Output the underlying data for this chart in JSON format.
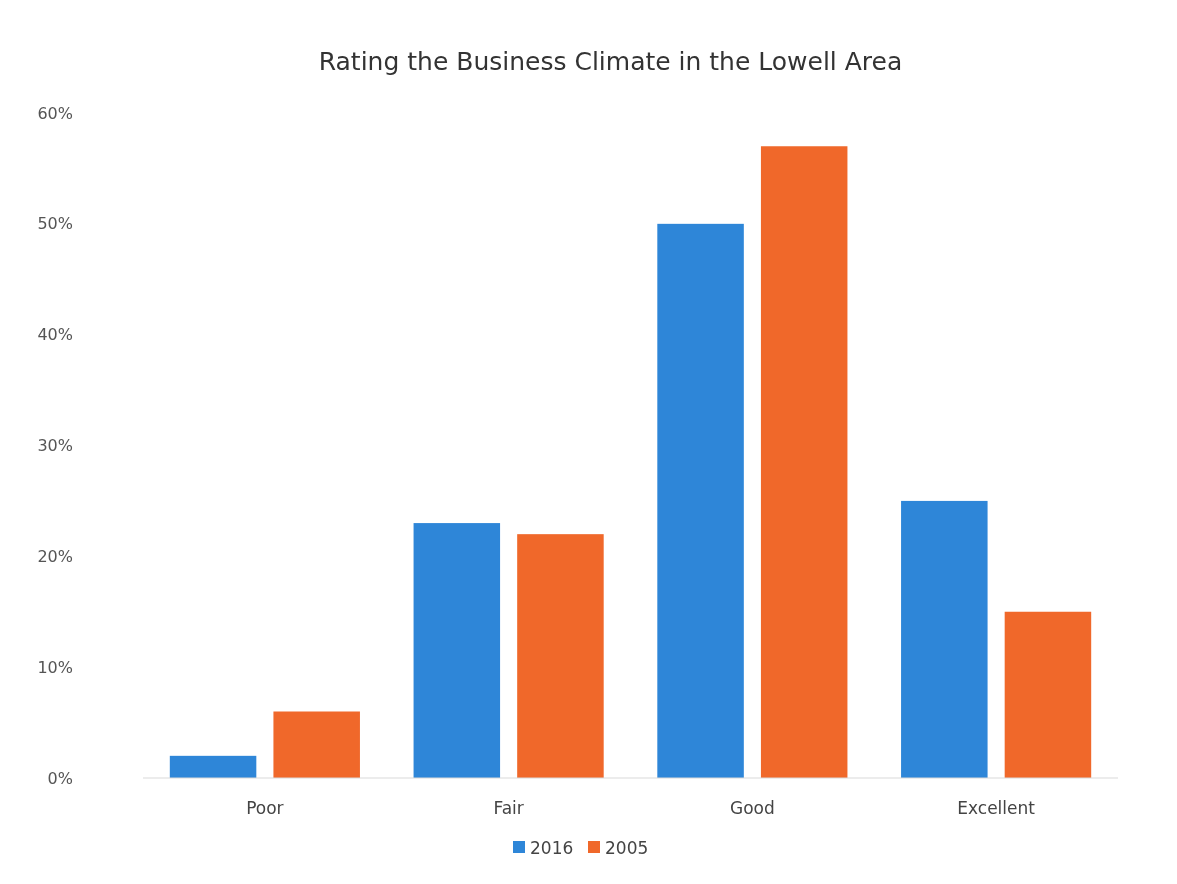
{
  "chart_data": {
    "type": "bar",
    "title": "Rating the Business Climate in the Lowell Area",
    "categories": [
      "Poor",
      "Fair",
      "Good",
      "Excellent"
    ],
    "series": [
      {
        "name": "2016",
        "color": "#2e86d8",
        "values": [
          2,
          23,
          50,
          25
        ]
      },
      {
        "name": "2005",
        "color": "#f0682a",
        "values": [
          6,
          22,
          57,
          15
        ]
      }
    ],
    "ylim": [
      0,
      60
    ],
    "yticks": [
      {
        "value": 0,
        "label": "0%"
      },
      {
        "value": 10,
        "label": "10%"
      },
      {
        "value": 20,
        "label": "20%"
      },
      {
        "value": 30,
        "label": "30%"
      },
      {
        "value": 40,
        "label": "40%"
      },
      {
        "value": 50,
        "label": "50%"
      },
      {
        "value": 60,
        "label": "60%"
      }
    ],
    "legend": "bottom"
  }
}
